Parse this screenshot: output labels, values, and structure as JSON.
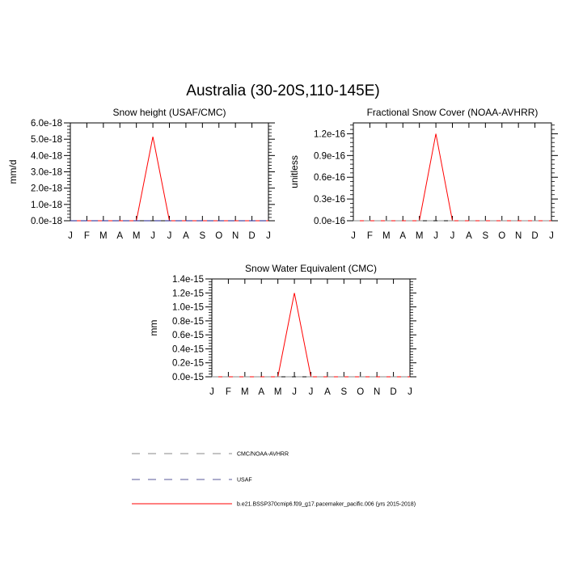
{
  "figure": {
    "title": "Australia (30-20S,110-145E)"
  },
  "colors": {
    "model": "#ff0000",
    "usaf": "#1a1a8a",
    "cmc": "#888888",
    "axis": "#000000"
  },
  "legend": [
    {
      "label": "CMC/NOAA-AVHRR",
      "style": "dashed",
      "color": "#888888"
    },
    {
      "label": "USAF",
      "style": "dashed",
      "color": "#5a5a9a"
    },
    {
      "label": "b.e21.BSSP370cmip6.f09_g17.pacemaker_pacific.006 (yrs 2015-2018)",
      "style": "solid",
      "color": "#ff0000"
    }
  ],
  "chart_data": [
    {
      "type": "line",
      "title": "Snow height (USAF/CMC)",
      "ylabel": "mm/d",
      "x": [
        "J",
        "F",
        "M",
        "A",
        "M",
        "J",
        "J",
        "A",
        "S",
        "O",
        "N",
        "D",
        "J"
      ],
      "ylim": [
        0,
        6e-18
      ],
      "yticks": [
        "0.0e-18",
        "1.0e-18",
        "2.0e-18",
        "3.0e-18",
        "4.0e-18",
        "5.0e-18",
        "6.0e-18"
      ],
      "ytick_values": [
        0,
        1e-18,
        2e-18,
        3e-18,
        4e-18,
        5e-18,
        6e-18
      ],
      "series": [
        {
          "key": "model",
          "values": [
            0,
            0,
            0,
            0,
            0,
            5.15e-18,
            0,
            0,
            0,
            0,
            0,
            0,
            0
          ]
        },
        {
          "key": "usaf",
          "values": [
            0,
            0,
            0,
            0,
            0,
            0,
            0,
            0,
            0,
            0,
            0,
            0,
            0
          ]
        }
      ]
    },
    {
      "type": "line",
      "title": "Fractional Snow Cover (NOAA-AVHRR)",
      "ylabel": "unitless",
      "x": [
        "J",
        "F",
        "M",
        "A",
        "M",
        "J",
        "J",
        "A",
        "S",
        "O",
        "N",
        "D",
        "J"
      ],
      "ylim": [
        0,
        1.35e-16
      ],
      "yticks": [
        "0.0e-16",
        "0.3e-16",
        "0.6e-16",
        "0.9e-16",
        "1.2e-16"
      ],
      "ytick_values": [
        0,
        3e-17,
        6e-17,
        9e-17,
        1.2e-16
      ],
      "series": [
        {
          "key": "model",
          "values": [
            0,
            0,
            0,
            0,
            0,
            1.2e-16,
            0,
            0,
            0,
            0,
            0,
            0,
            0
          ]
        },
        {
          "key": "cmc",
          "values": [
            0,
            0,
            0,
            0,
            0,
            0,
            0,
            0,
            0,
            0,
            0,
            0,
            0
          ]
        }
      ]
    },
    {
      "type": "line",
      "title": "Snow Water Equivalent (CMC)",
      "ylabel": "mm",
      "x": [
        "J",
        "F",
        "M",
        "A",
        "M",
        "J",
        "J",
        "A",
        "S",
        "O",
        "N",
        "D",
        "J"
      ],
      "ylim": [
        0,
        1.4e-15
      ],
      "yticks": [
        "0.0e-15",
        "0.2e-15",
        "0.4e-15",
        "0.6e-15",
        "0.8e-15",
        "1.0e-15",
        "1.2e-15",
        "1.4e-15"
      ],
      "ytick_values": [
        0,
        2e-16,
        4e-16,
        6e-16,
        8e-16,
        1e-15,
        1.2e-15,
        1.4e-15
      ],
      "series": [
        {
          "key": "model",
          "values": [
            0,
            0,
            0,
            0,
            0,
            1.2e-15,
            0,
            0,
            0,
            0,
            0,
            0,
            0
          ]
        },
        {
          "key": "cmc",
          "values": [
            0,
            0,
            0,
            0,
            0,
            0,
            0,
            0,
            0,
            0,
            0,
            0,
            0
          ]
        }
      ]
    }
  ]
}
